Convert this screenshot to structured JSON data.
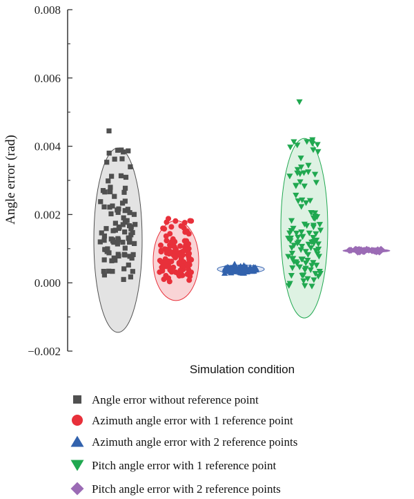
{
  "chart_data": {
    "type": "scatter",
    "title": "",
    "xlabel": "Simulation condition",
    "ylabel": "Angle error (rad)",
    "ylim": [
      -0.002,
      0.008
    ],
    "yticks": [
      -0.002,
      0.0,
      0.002,
      0.004,
      0.006,
      0.008
    ],
    "ytick_labels": [
      "−0.002",
      "0.000",
      "0.002",
      "0.004",
      "0.006",
      "0.008"
    ],
    "grid": false,
    "legend_position": "bottom",
    "series": [
      {
        "name": "Angle error without reference point",
        "marker": "square",
        "color": "#505050",
        "ellipse_fill": "#e2e2e2",
        "ellipse_stroke": "#505050",
        "ellipse_y_range": [
          -0.00145,
          0.00395
        ],
        "max_value": 0.00445,
        "y_range": [
          0.0,
          0.0039
        ],
        "center_y": 0.00125,
        "count": 95
      },
      {
        "name": "Azimuth angle error with 1 reference point",
        "marker": "circle",
        "color": "#e8303a",
        "ellipse_fill": "#f9d2d4",
        "ellipse_stroke": "#e8303a",
        "ellipse_y_range": [
          -0.00052,
          0.00182
        ],
        "max_value": 0.00188,
        "y_range": [
          2e-05,
          0.00188
        ],
        "center_y": 0.00065,
        "count": 110
      },
      {
        "name": "Azimuth angle error with 2 reference points",
        "marker": "triangle-up",
        "color": "#3262ad",
        "ellipse_fill": "#dbe4f4",
        "ellipse_stroke": "#3262ad",
        "ellipse_y_range": [
          0.00028,
          0.00052
        ],
        "max_value": 0.00055,
        "y_range": [
          0.00028,
          0.00052
        ],
        "center_y": 0.0004,
        "count": 80
      },
      {
        "name": "Pitch angle error with 1 reference point",
        "marker": "triangle-down",
        "color": "#20a850",
        "ellipse_fill": "#dcf1e2",
        "ellipse_stroke": "#20a850",
        "ellipse_y_range": [
          -0.00103,
          0.00423
        ],
        "max_value": 0.0053,
        "y_range": [
          -0.0001,
          0.0043
        ],
        "center_y": 0.0013,
        "count": 110
      },
      {
        "name": "Pitch angle error with 2 reference points",
        "marker": "diamond",
        "color": "#9b6bb5",
        "ellipse_fill": "#9b6bb5",
        "ellipse_stroke": "#9b6bb5",
        "ellipse_y_range": [
          0.00089,
          0.00099
        ],
        "max_value": 0.00099,
        "y_range": [
          0.00089,
          0.00099
        ],
        "center_y": 0.00094,
        "count": 30
      }
    ]
  }
}
